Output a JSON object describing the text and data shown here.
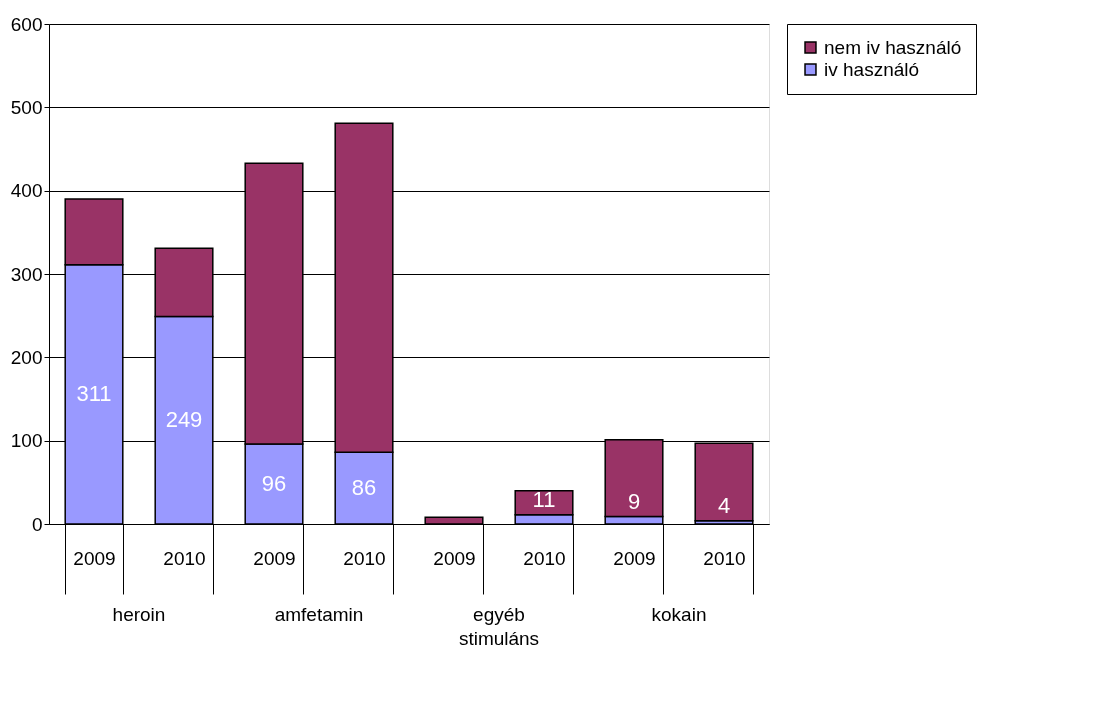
{
  "chart_data": {
    "type": "bar",
    "stacked": true,
    "categories": [
      "2009",
      "2010",
      "2009",
      "2010",
      "2009",
      "2010",
      "2009",
      "2010"
    ],
    "series": [
      {
        "name": "iv használó",
        "color": "#9999ff",
        "values": [
          311,
          249,
          96,
          86,
          null,
          11,
          9,
          4
        ],
        "value_labels": [
          "311",
          "249",
          "96",
          "86",
          null,
          "11",
          "9",
          "4"
        ]
      },
      {
        "name": "nem iv használó",
        "color": "#993366",
        "values": [
          79,
          82,
          337,
          395,
          8,
          29,
          92,
          93
        ]
      }
    ],
    "annotations": [
      "heroin",
      "amfetamin",
      "egyéb\nstimuláns",
      "kokain"
    ],
    "ylim": [
      0,
      600
    ],
    "yticks": [
      0,
      100,
      200,
      300,
      400,
      500,
      600
    ],
    "grid": "y",
    "legend": "right"
  }
}
